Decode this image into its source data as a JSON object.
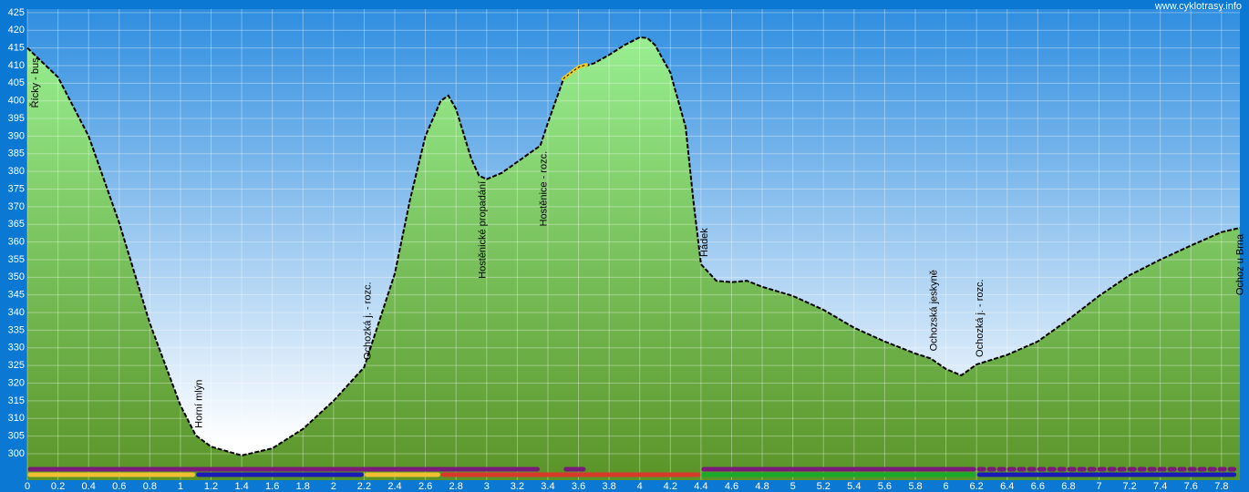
{
  "chart_data": {
    "type": "area",
    "watermark": "www.cyklotrasy.info",
    "x": [
      0,
      0.2,
      0.4,
      0.6,
      0.8,
      1.0,
      1.1,
      1.2,
      1.4,
      1.6,
      1.8,
      2.0,
      2.2,
      2.4,
      2.5,
      2.6,
      2.7,
      2.75,
      2.8,
      2.9,
      2.95,
      3.0,
      3.1,
      3.2,
      3.35,
      3.4,
      3.5,
      3.6,
      3.7,
      3.8,
      3.9,
      4.0,
      4.05,
      4.1,
      4.2,
      4.3,
      4.35,
      4.4,
      4.5,
      4.6,
      4.7,
      4.8,
      5.0,
      5.2,
      5.4,
      5.6,
      5.8,
      5.9,
      6.0,
      6.1,
      6.2,
      6.4,
      6.6,
      6.8,
      7.0,
      7.2,
      7.4,
      7.6,
      7.8,
      7.92
    ],
    "series": [
      {
        "color": "#000000",
        "fill_top": "#98ee90",
        "fill_bottom": "#5a9428",
        "values": [
          415,
          406.7,
          390,
          365.4,
          337,
          313.7,
          305.2,
          302,
          299.5,
          301.5,
          307,
          315,
          324.5,
          351,
          372,
          390,
          400,
          401.5,
          397.7,
          383.5,
          378.8,
          377.8,
          379.6,
          382.7,
          387.3,
          393.8,
          406,
          409.3,
          410.6,
          413,
          415.8,
          418,
          417.8,
          415.8,
          408,
          392.5,
          371.8,
          353.7,
          349,
          348.6,
          349,
          347.3,
          344.7,
          340.8,
          335.7,
          331.8,
          328.4,
          327,
          324,
          322.2,
          325.3,
          328,
          331.8,
          338,
          344.7,
          350.6,
          355,
          359,
          362.8,
          364
        ]
      }
    ],
    "highlight": {
      "start": 3.5,
      "end": 3.65,
      "color": "#f2d020"
    },
    "annotations": [
      {
        "x": 0.03,
        "label": "Řícky - bus"
      },
      {
        "x": 1.1,
        "label": "Horní mlýn"
      },
      {
        "x": 2.2,
        "label": "Ochozká j. - rozc."
      },
      {
        "x": 2.95,
        "label": "Hostěnické propadání"
      },
      {
        "x": 3.35,
        "label": "Hostěnice - rozc."
      },
      {
        "x": 4.4,
        "label": "Hádek"
      },
      {
        "x": 5.9,
        "label": "Ochozská jeskyně"
      },
      {
        "x": 6.2,
        "label": "Ochozká j. - rozc."
      },
      {
        "x": 7.9,
        "label": "Ochoz u Brna"
      }
    ],
    "route_top": [
      {
        "start": 0,
        "end": 3.35,
        "color": "#7a1a7a",
        "style": "solid"
      },
      {
        "start": 3.5,
        "end": 3.65,
        "color": "#7a1a7a",
        "style": "solid"
      },
      {
        "start": 4.4,
        "end": 6.2,
        "color": "#7a1a7a",
        "style": "solid"
      },
      {
        "start": 6.2,
        "end": 7.9,
        "color": "#7a1a7a",
        "style": "dotted"
      }
    ],
    "route_bottom": [
      {
        "start": 0,
        "end": 1.1,
        "color": "#f0c030",
        "style": "solid"
      },
      {
        "start": 1.1,
        "end": 2.2,
        "color": "#1a1ab4",
        "style": "solid"
      },
      {
        "start": 2.2,
        "end": 2.7,
        "color": "#f0c030",
        "style": "solid"
      },
      {
        "start": 2.7,
        "end": 4.4,
        "color": "#d83a2a",
        "style": "solid"
      },
      {
        "start": 4.4,
        "end": 6.2,
        "color": "#1aaa2a",
        "style": "solid"
      },
      {
        "start": 6.2,
        "end": 7.9,
        "color": "#1a1ab4",
        "style": "solid"
      }
    ],
    "xlim": [
      0,
      7.92
    ],
    "ylim": [
      292.5,
      426
    ],
    "xticks": [
      0,
      0.2,
      0.4,
      0.6,
      0.8,
      1,
      1.2,
      1.4,
      1.6,
      1.8,
      2,
      2.2,
      2.4,
      2.6,
      2.8,
      3,
      3.2,
      3.4,
      3.6,
      3.8,
      4,
      4.2,
      4.4,
      4.6,
      4.8,
      5,
      5.2,
      5.4,
      5.6,
      5.8,
      6,
      6.2,
      6.4,
      6.6,
      6.8,
      7,
      7.2,
      7.4,
      7.6,
      7.8
    ],
    "yticks": [
      300,
      305,
      310,
      315,
      320,
      325,
      330,
      335,
      340,
      345,
      350,
      355,
      360,
      365,
      370,
      375,
      380,
      385,
      390,
      395,
      400,
      405,
      410,
      415,
      420,
      425
    ],
    "grid": true
  }
}
